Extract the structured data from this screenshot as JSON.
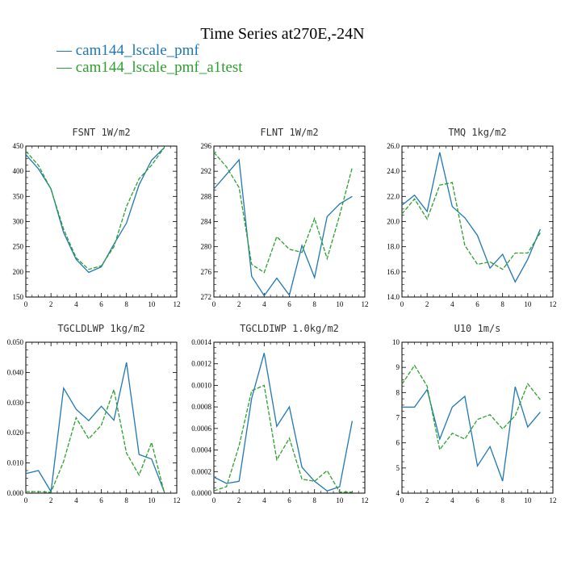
{
  "figure": {
    "title": "Time Series at270E,-24N",
    "legend": [
      {
        "label": "— cam144_lscale_pmf",
        "color": "#1f77b4"
      },
      {
        "label": "— cam144_lscale_pmf_a1test",
        "color": "#2ca02c"
      }
    ]
  },
  "colors": {
    "series1": "#1f77b4",
    "series2": "#2ca02c"
  },
  "chart_data": [
    {
      "type": "line",
      "title": "FSNT   1W/m2",
      "x": [
        0,
        1,
        2,
        3,
        4,
        5,
        6,
        7,
        8,
        9,
        10,
        11
      ],
      "xlim": [
        0,
        12
      ],
      "xticks": [
        0,
        2,
        4,
        6,
        8,
        10,
        12
      ],
      "ylim": [
        150,
        450
      ],
      "yticks": [
        150,
        200,
        250,
        300,
        350,
        400,
        450
      ],
      "yticklabels": [
        "150",
        "200",
        "250",
        "300",
        "350",
        "400",
        "450"
      ],
      "series": [
        {
          "name": "cam144_lscale_pmf",
          "values": [
            433,
            405,
            365,
            278,
            225,
            199,
            210,
            255,
            297,
            373,
            422,
            447
          ],
          "style": "solid"
        },
        {
          "name": "cam144_lscale_pmf_a1test",
          "values": [
            440,
            412,
            364,
            285,
            228,
            205,
            212,
            250,
            330,
            385,
            412,
            447
          ],
          "style": "dashed"
        }
      ]
    },
    {
      "type": "line",
      "title": "FLNT   1W/m2",
      "x": [
        0,
        1,
        2,
        3,
        4,
        5,
        6,
        7,
        8,
        9,
        10,
        11
      ],
      "xlim": [
        0,
        12
      ],
      "xticks": [
        0,
        2,
        4,
        6,
        8,
        10,
        12
      ],
      "ylim": [
        272,
        296
      ],
      "yticks": [
        272,
        276,
        280,
        284,
        288,
        292,
        296
      ],
      "yticklabels": [
        "272",
        "276",
        "280",
        "284",
        "288",
        "292",
        "296"
      ],
      "series": [
        {
          "name": "cam144_lscale_pmf",
          "values": [
            289.2,
            291.5,
            293.8,
            275.3,
            272.2,
            275.0,
            272.3,
            280.2,
            275.1,
            284.8,
            286.8,
            288.0
          ],
          "style": "solid"
        },
        {
          "name": "cam144_lscale_pmf_a1test",
          "values": [
            295.0,
            292.7,
            289.4,
            277.2,
            275.9,
            281.6,
            279.6,
            279.1,
            284.5,
            278.1,
            285.0,
            292.6
          ],
          "style": "dashed"
        }
      ]
    },
    {
      "type": "line",
      "title": "TMQ   1kg/m2",
      "x": [
        0,
        1,
        2,
        3,
        4,
        5,
        6,
        7,
        8,
        9,
        10,
        11
      ],
      "xlim": [
        0,
        12
      ],
      "xticks": [
        0,
        2,
        4,
        6,
        8,
        10,
        12
      ],
      "ylim": [
        14,
        26
      ],
      "yticks": [
        14,
        16,
        18,
        20,
        22,
        24,
        26
      ],
      "yticklabels": [
        "14.0",
        "16.0",
        "18.0",
        "20.0",
        "22.0",
        "24.0",
        "26.0"
      ],
      "series": [
        {
          "name": "cam144_lscale_pmf",
          "values": [
            21.3,
            22.1,
            20.8,
            25.5,
            21.2,
            20.3,
            18.9,
            16.3,
            17.4,
            15.2,
            17.0,
            19.4
          ],
          "style": "solid"
        },
        {
          "name": "cam144_lscale_pmf_a1test",
          "values": [
            20.6,
            21.8,
            20.2,
            22.9,
            23.1,
            18.1,
            16.6,
            16.8,
            16.2,
            17.5,
            17.5,
            19.1
          ],
          "style": "dashed"
        }
      ]
    },
    {
      "type": "line",
      "title": "TGCLDLWP   1kg/m2",
      "x": [
        0,
        1,
        2,
        3,
        4,
        5,
        6,
        7,
        8,
        9,
        10,
        11
      ],
      "xlim": [
        0,
        12
      ],
      "xticks": [
        0,
        2,
        4,
        6,
        8,
        10,
        12
      ],
      "ylim": [
        0,
        0.05
      ],
      "yticks": [
        0,
        0.01,
        0.02,
        0.03,
        0.04,
        0.05
      ],
      "yticklabels": [
        "0.000",
        "0.010",
        "0.020",
        "0.030",
        "0.040",
        "0.050"
      ],
      "series": [
        {
          "name": "cam144_lscale_pmf",
          "values": [
            0.0065,
            0.0075,
            0.0005,
            0.0348,
            0.0278,
            0.024,
            0.0288,
            0.0242,
            0.0433,
            0.0128,
            0.0113,
            0.0005
          ],
          "style": "solid"
        },
        {
          "name": "cam144_lscale_pmf_a1test",
          "values": [
            0.0005,
            0.0005,
            0.0003,
            0.0105,
            0.025,
            0.018,
            0.0225,
            0.0343,
            0.0133,
            0.006,
            0.0168,
            0.0003
          ],
          "style": "dashed"
        }
      ]
    },
    {
      "type": "line",
      "title": "TGCLDIWP   1.0kg/m2",
      "x": [
        0,
        1,
        2,
        3,
        4,
        5,
        6,
        7,
        8,
        9,
        10,
        11
      ],
      "xlim": [
        0,
        12
      ],
      "xticks": [
        0,
        2,
        4,
        6,
        8,
        10,
        12
      ],
      "ylim": [
        0,
        0.0014
      ],
      "yticks": [
        0,
        0.0002,
        0.0004,
        0.0006,
        0.0008,
        0.001,
        0.0012,
        0.0014
      ],
      "yticklabels": [
        "0.0000",
        "0.0002",
        "0.0004",
        "0.0006",
        "0.0008",
        "0.0010",
        "0.0012",
        "0.0014"
      ],
      "series": [
        {
          "name": "cam144_lscale_pmf",
          "values": [
            0.00015,
            9e-05,
            0.00011,
            0.00088,
            0.0013,
            0.00062,
            0.0008,
            0.00024,
            0.00011,
            2e-05,
            6e-05,
            0.00067
          ],
          "style": "solid"
        },
        {
          "name": "cam144_lscale_pmf_a1test",
          "values": [
            2e-05,
            6e-05,
            0.00044,
            0.00095,
            0.001,
            0.00031,
            0.00051,
            0.00013,
            0.00011,
            0.00021,
            1e-05,
            1e-05
          ],
          "style": "dashed"
        }
      ]
    },
    {
      "type": "line",
      "title": "U10   1m/s",
      "x": [
        0,
        1,
        2,
        3,
        4,
        5,
        6,
        7,
        8,
        9,
        10,
        11
      ],
      "xlim": [
        0,
        12
      ],
      "xticks": [
        0,
        2,
        4,
        6,
        8,
        10,
        12
      ],
      "ylim": [
        4,
        10
      ],
      "yticks": [
        4,
        5,
        6,
        7,
        8,
        9,
        10
      ],
      "yticklabels": [
        "4",
        "5",
        "6",
        "7",
        "8",
        "9",
        "10"
      ],
      "series": [
        {
          "name": "cam144_lscale_pmf",
          "values": [
            7.42,
            7.42,
            8.12,
            6.15,
            7.42,
            7.85,
            5.08,
            5.85,
            4.48,
            8.23,
            6.63,
            7.22
          ],
          "style": "solid"
        },
        {
          "name": "cam144_lscale_pmf_a1test",
          "values": [
            8.33,
            9.08,
            8.25,
            5.73,
            6.38,
            6.15,
            6.93,
            7.12,
            6.55,
            7.08,
            8.35,
            7.72
          ],
          "style": "dashed"
        }
      ]
    }
  ]
}
